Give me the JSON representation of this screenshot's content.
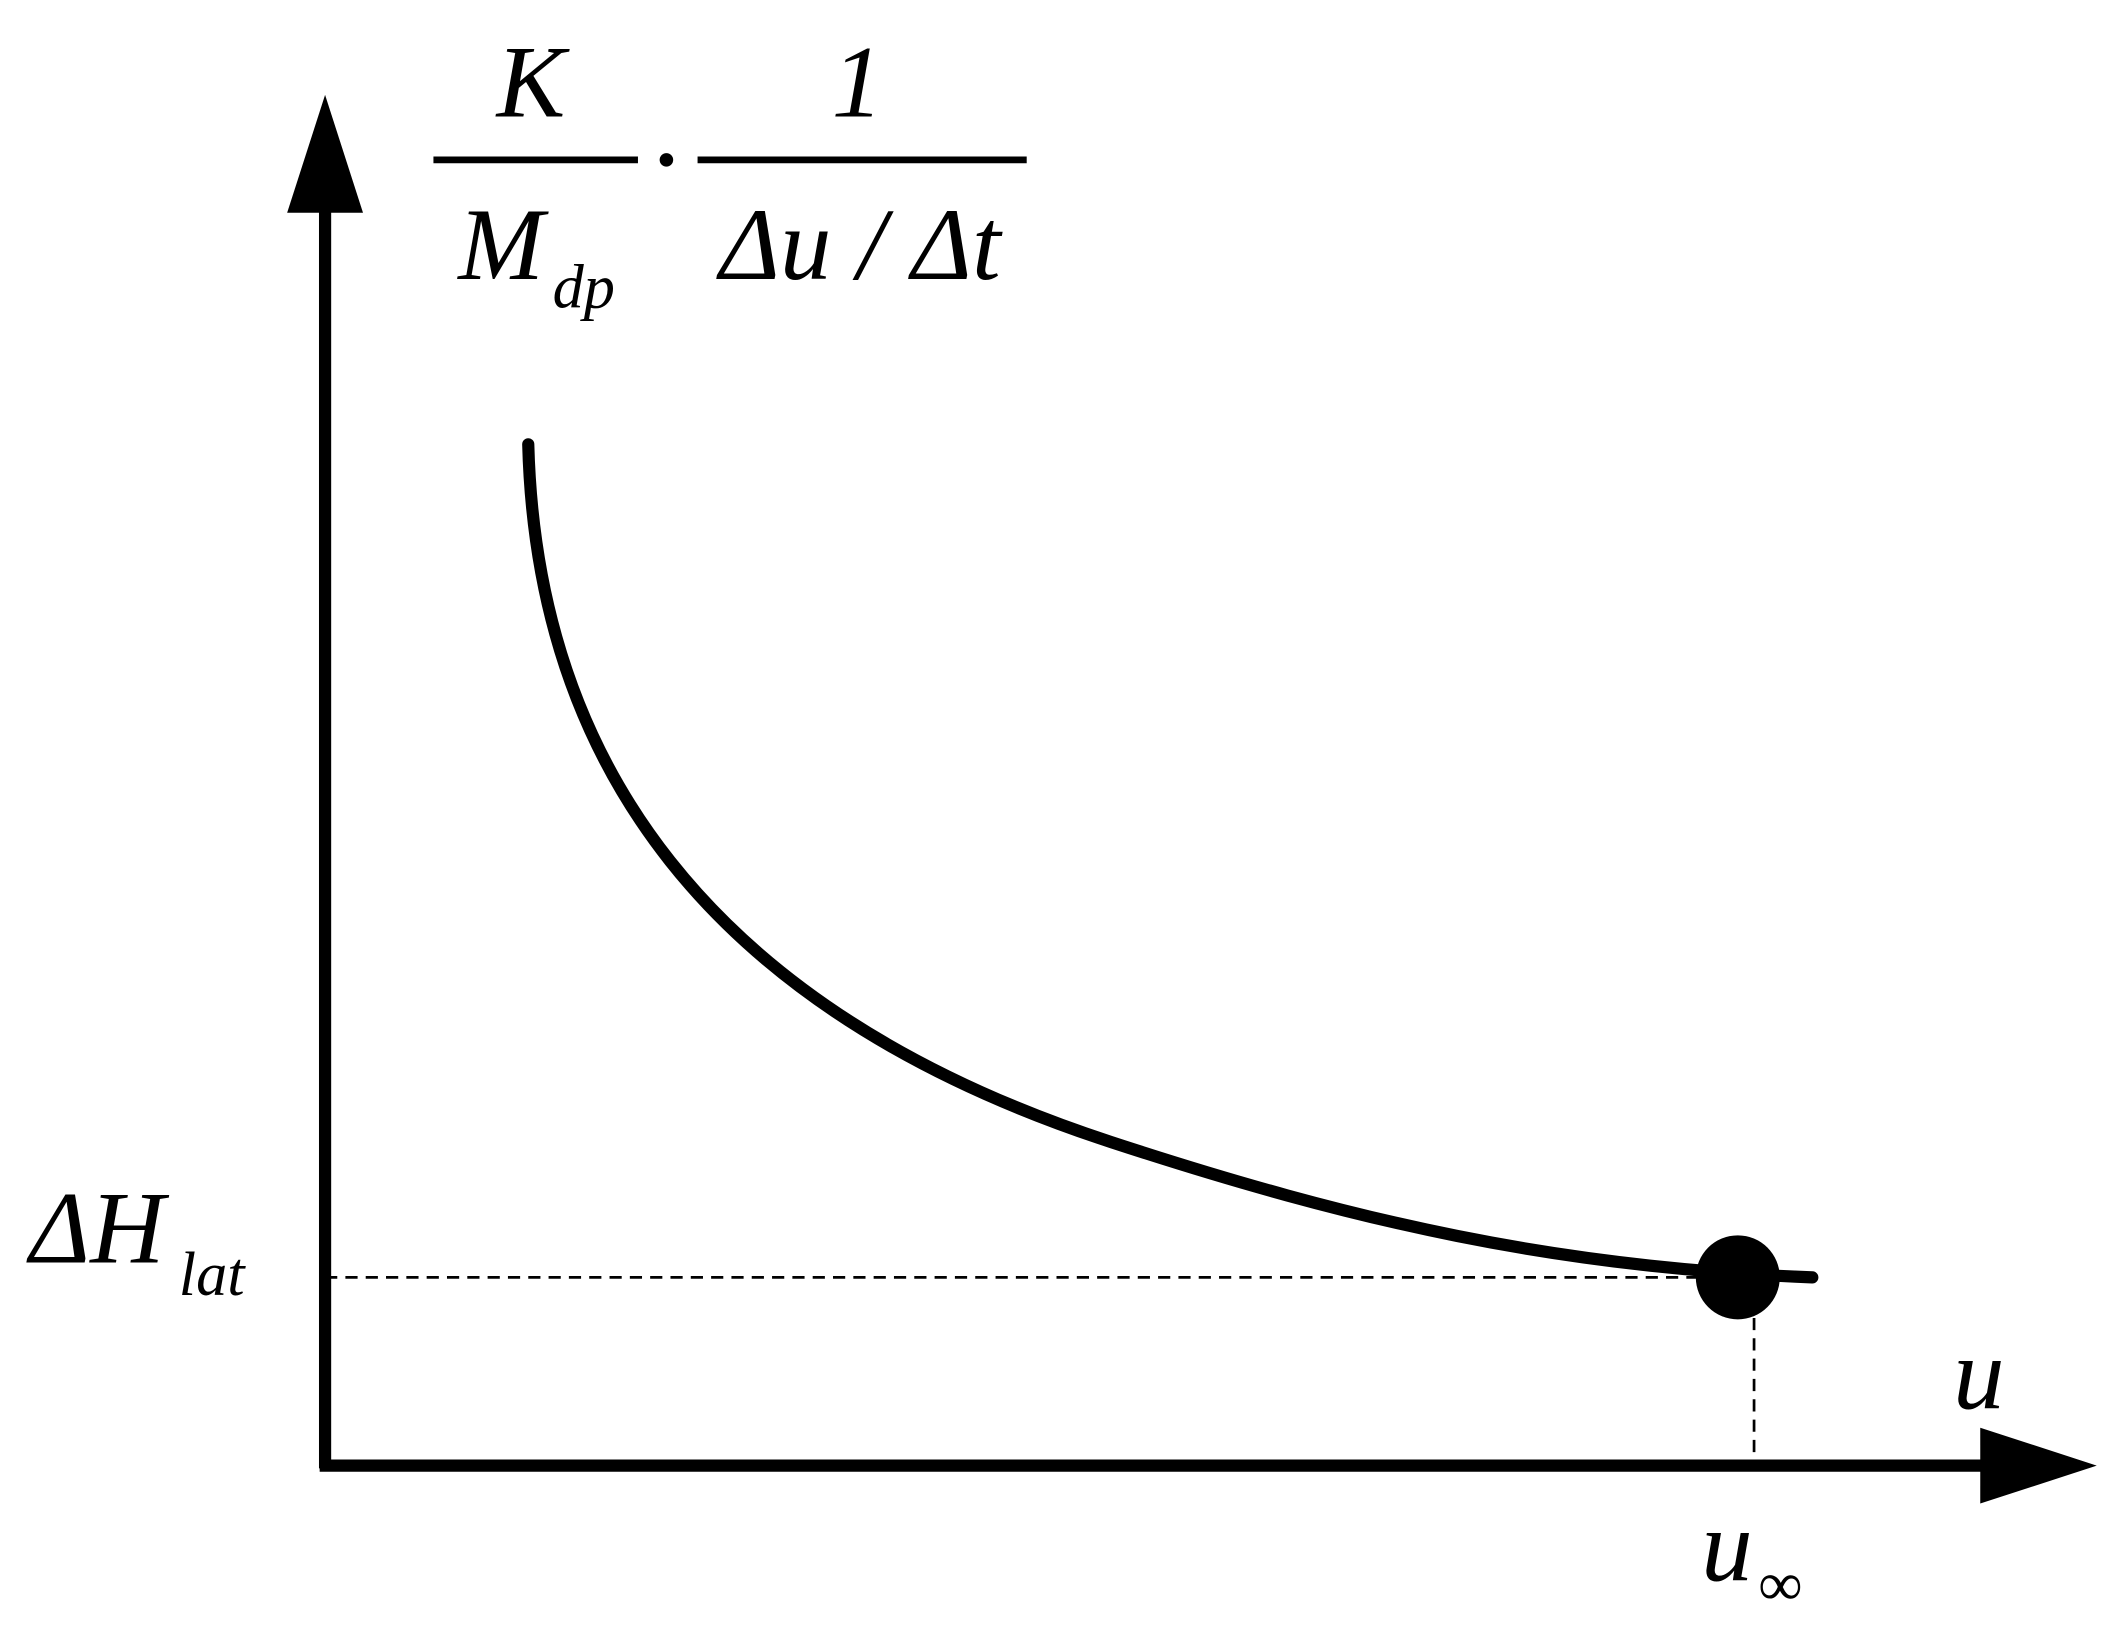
{
  "formula": {
    "top_left": "K",
    "bottom_left": "M",
    "bottom_left_sub": "dp",
    "top_right": "1",
    "bottom_right": "Δu / Δt"
  },
  "y_label": {
    "main": "ΔH",
    "sub": "lat"
  },
  "x_axis_label": "u",
  "x_marker": {
    "main": "u",
    "sub": "∞"
  }
}
